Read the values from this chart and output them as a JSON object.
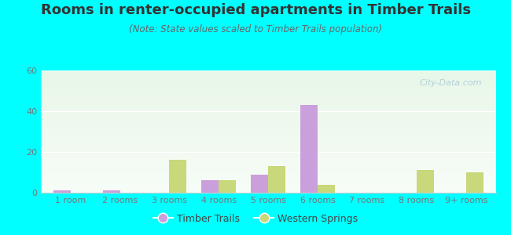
{
  "title": "Rooms in renter-occupied apartments in Timber Trails",
  "subtitle": "(Note: State values scaled to Timber Trails population)",
  "categories": [
    "1 room",
    "2 rooms",
    "3 rooms",
    "4 rooms",
    "5 rooms",
    "6 rooms",
    "7 rooms",
    "8 rooms",
    "9+ rooms"
  ],
  "timber_trails": [
    1,
    1,
    0,
    6,
    9,
    43,
    0,
    0,
    0
  ],
  "western_springs": [
    0,
    0,
    16,
    6,
    13,
    4,
    0,
    11,
    10
  ],
  "timber_color": "#c9a0dc",
  "western_color": "#c8d87a",
  "bg_color": "#00ffff",
  "ylim": [
    0,
    60
  ],
  "yticks": [
    0,
    20,
    40,
    60
  ],
  "bar_width": 0.35,
  "title_fontsize": 13,
  "subtitle_fontsize": 8.5,
  "tick_fontsize": 8,
  "legend_fontsize": 9,
  "watermark": "City-Data.com",
  "watermark_color": "#aac8d8",
  "timber_legend": "Timber Trails",
  "western_legend": "Western Springs",
  "grid_color": "#ffffff",
  "spine_color": "#cccccc",
  "tick_color": "#777777"
}
